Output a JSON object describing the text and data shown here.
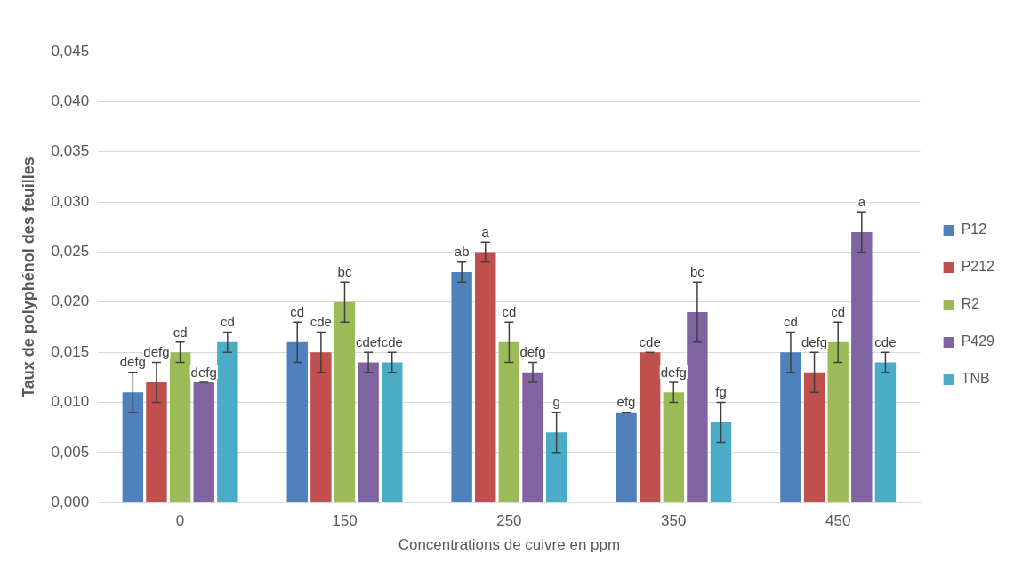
{
  "chart_data": {
    "type": "bar",
    "xlabel": "Concentrations de cuivre en ppm",
    "ylabel": "Taux de polyphénol des feuilles",
    "categories": [
      "0",
      "150",
      "250",
      "350",
      "450"
    ],
    "series": [
      {
        "name": "P12",
        "color": "#4f81bd",
        "values": [
          0.011,
          0.016,
          0.023,
          0.009,
          0.015
        ],
        "errors": [
          0.002,
          0.002,
          0.001,
          0,
          0.002
        ],
        "value_labels": [
          "defg",
          "cd",
          "ab",
          "efg",
          "cd"
        ]
      },
      {
        "name": "P212",
        "color": "#c0504d",
        "values": [
          0.012,
          0.015,
          0.025,
          0.015,
          0.013
        ],
        "errors": [
          0.002,
          0.002,
          0.001,
          0,
          0.002
        ],
        "value_labels": [
          "defg",
          "cde",
          "a",
          "cde",
          "defg"
        ]
      },
      {
        "name": "R2",
        "color": "#9bbb59",
        "values": [
          0.015,
          0.02,
          0.016,
          0.011,
          0.016
        ],
        "errors": [
          0.001,
          0.002,
          0.002,
          0.001,
          0.002
        ],
        "value_labels": [
          "cd",
          "bc",
          "cd",
          "defg",
          "cd"
        ]
      },
      {
        "name": "P429",
        "color": "#8064a2",
        "values": [
          0.012,
          0.014,
          0.013,
          0.019,
          0.027
        ],
        "errors": [
          0,
          0.001,
          0.001,
          0.003,
          0.002
        ],
        "value_labels": [
          "defg",
          "cdef",
          "defg",
          "bc",
          "a"
        ]
      },
      {
        "name": "TNB",
        "color": "#4bacc6",
        "values": [
          0.016,
          0.014,
          0.007,
          0.008,
          0.014
        ],
        "errors": [
          0.001,
          0.001,
          0.002,
          0.002,
          0.001
        ],
        "value_labels": [
          "cd",
          "cde",
          "g",
          "fg",
          "cde"
        ]
      }
    ],
    "ylim": [
      0,
      0.045
    ],
    "yticks": [
      {
        "value": 0,
        "label": "0,000"
      },
      {
        "value": 0.005,
        "label": "0,005"
      },
      {
        "value": 0.01,
        "label": "0,010"
      },
      {
        "value": 0.015,
        "label": "0,015"
      },
      {
        "value": 0.02,
        "label": "0,020"
      },
      {
        "value": 0.025,
        "label": "0,025"
      },
      {
        "value": 0.03,
        "label": "0,030"
      },
      {
        "value": 0.035,
        "label": "0,035"
      },
      {
        "value": 0.04,
        "label": "0,040"
      },
      {
        "value": 0.045,
        "label": "0,045"
      }
    ],
    "grid": "y",
    "legend": "right"
  }
}
